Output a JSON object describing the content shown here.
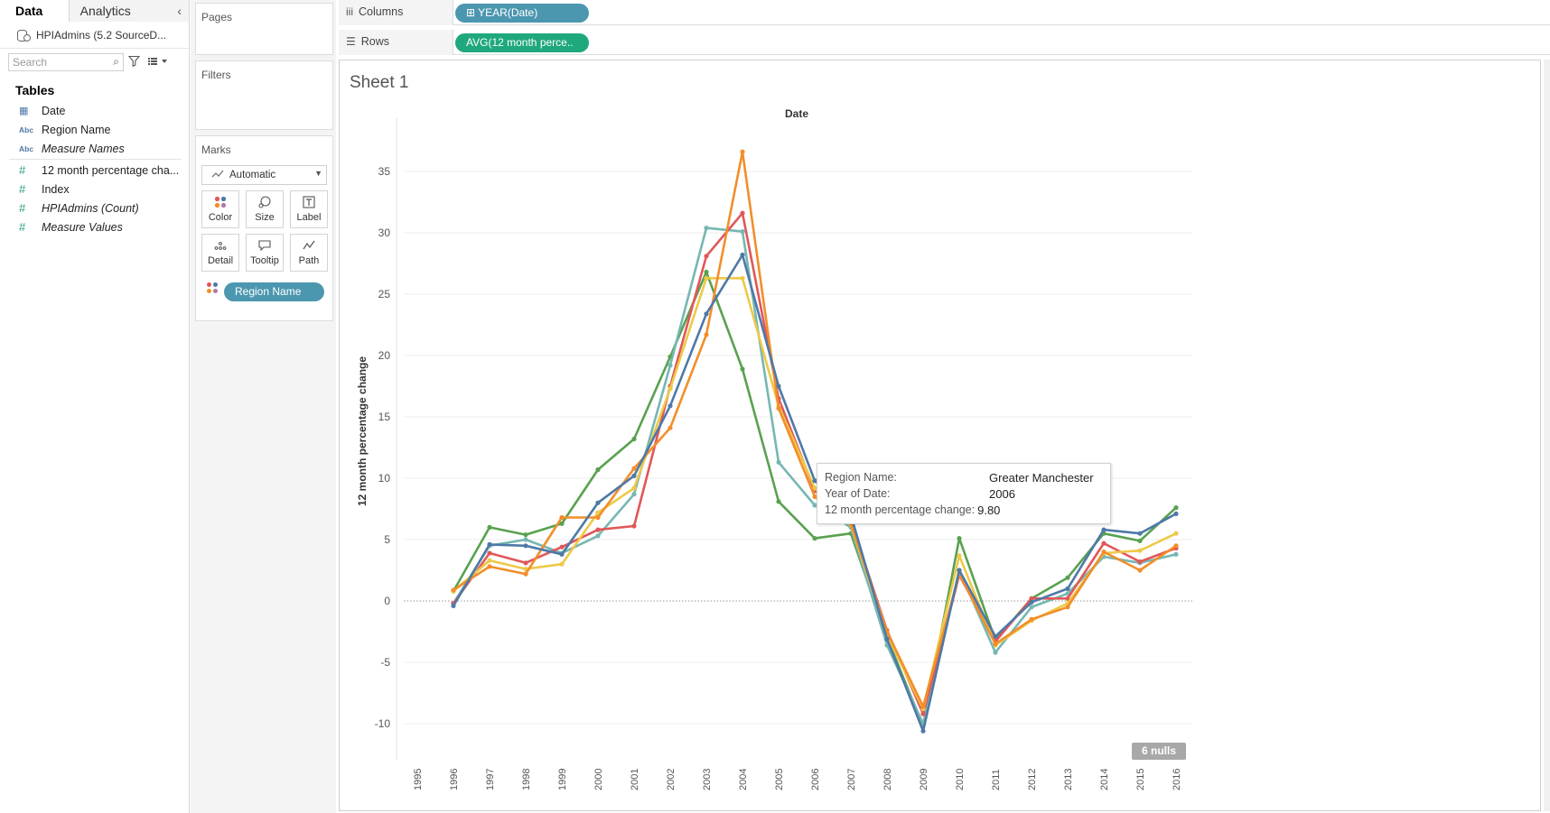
{
  "data_pane": {
    "tab_data": "Data",
    "tab_analytics": "Analytics",
    "collapse_glyph": "‹",
    "datasource": "HPIAdmins (5.2 SourceD...",
    "search_placeholder": "Search",
    "tables_heading": "Tables",
    "fields_dims": [
      {
        "type": "date",
        "icon": "calendar-icon",
        "name": "Date",
        "italic": false
      },
      {
        "type": "abc",
        "icon": "abc-icon",
        "name": "Region Name",
        "italic": false
      },
      {
        "type": "abc",
        "icon": "abc-icon",
        "name": "Measure Names",
        "italic": true
      }
    ],
    "fields_measures": [
      {
        "type": "num",
        "icon": "hash-icon",
        "name": "12 month percentage cha...",
        "italic": false
      },
      {
        "type": "num",
        "icon": "hash-icon",
        "name": "Index",
        "italic": false
      },
      {
        "type": "num",
        "icon": "hash-icon",
        "name": "HPIAdmins (Count)",
        "italic": true
      },
      {
        "type": "num",
        "icon": "hash-icon",
        "name": "Measure Values",
        "italic": true
      }
    ]
  },
  "cards": {
    "pages": "Pages",
    "filters": "Filters",
    "marks": "Marks",
    "marks_type": "Automatic",
    "buttons": [
      "Color",
      "Size",
      "Label",
      "Detail",
      "Tooltip",
      "Path"
    ],
    "color_pill": "Region Name"
  },
  "shelves": {
    "columns_label": "Columns",
    "rows_label": "Rows",
    "columns_pill": "⊞ YEAR(Date)",
    "rows_pill": "AVG(12 month perce.."
  },
  "sheet": {
    "title": "Sheet 1",
    "nulls_badge": "6 nulls"
  },
  "tooltip": {
    "region_key": "Region Name:",
    "region_val": "Greater Manchester",
    "year_key": "Year of Date:",
    "year_val": "2006",
    "pct_key": "12 month percentage change:",
    "pct_val": "9.80"
  },
  "chart_data": {
    "type": "line",
    "title": "Date",
    "xlabel": "Date",
    "ylabel": "12 month percentage change",
    "x": [
      "1995",
      "1996",
      "1997",
      "1998",
      "1999",
      "2000",
      "2001",
      "2002",
      "2003",
      "2004",
      "2005",
      "2006",
      "2007",
      "2008",
      "2009",
      "2010",
      "2011",
      "2012",
      "2013",
      "2014",
      "2015",
      "2016"
    ],
    "ylim": [
      -13,
      38
    ],
    "yticks": [
      35,
      30,
      25,
      20,
      15,
      10,
      5,
      0,
      -5,
      -10
    ],
    "zero_line": true,
    "series": [
      {
        "color": "#59a14f",
        "values": [
          null,
          0.8,
          6.0,
          5.4,
          6.3,
          10.7,
          13.2,
          19.9,
          26.8,
          18.9,
          8.1,
          5.1,
          5.5,
          -3.0,
          -10.2,
          5.1,
          -3.2,
          0.2,
          1.9,
          5.5,
          4.9,
          7.6
        ]
      },
      {
        "color": "#76b7b2",
        "values": [
          null,
          -0.2,
          4.5,
          5.0,
          3.9,
          5.3,
          8.7,
          19.2,
          30.4,
          30.1,
          11.3,
          7.8,
          6.0,
          -3.6,
          -10.0,
          2.5,
          -4.2,
          -0.5,
          0.6,
          3.6,
          3.1,
          3.8
        ]
      },
      {
        "color": "#e15759",
        "values": [
          null,
          -0.2,
          3.9,
          3.1,
          4.4,
          5.8,
          6.1,
          17.5,
          28.1,
          31.6,
          16.5,
          9.0,
          6.5,
          -2.4,
          -9.2,
          2.1,
          -3.3,
          0.2,
          0.2,
          4.7,
          3.2,
          4.3
        ]
      },
      {
        "color": "#edc948",
        "values": [
          null,
          0.8,
          3.3,
          2.6,
          3.0,
          7.2,
          9.2,
          17.3,
          26.3,
          26.3,
          15.9,
          9.2,
          6.2,
          -2.8,
          -8.8,
          3.7,
          -3.6,
          -1.6,
          -0.2,
          3.9,
          4.1,
          5.5
        ]
      },
      {
        "color": "#f28e2b",
        "values": [
          null,
          0.9,
          2.8,
          2.2,
          6.8,
          6.8,
          10.8,
          14.1,
          21.7,
          36.6,
          15.7,
          8.5,
          6.3,
          -2.5,
          -8.6,
          2.2,
          -3.5,
          -1.5,
          -0.5,
          4.0,
          2.5,
          4.5
        ]
      },
      {
        "color": "#4e79a7",
        "values": [
          null,
          -0.4,
          4.6,
          4.5,
          3.8,
          8.0,
          10.2,
          15.9,
          23.4,
          28.2,
          17.5,
          9.8,
          7.0,
          -3.1,
          -10.6,
          2.5,
          -2.9,
          -0.1,
          1.0,
          5.8,
          5.5,
          7.1
        ]
      }
    ]
  }
}
